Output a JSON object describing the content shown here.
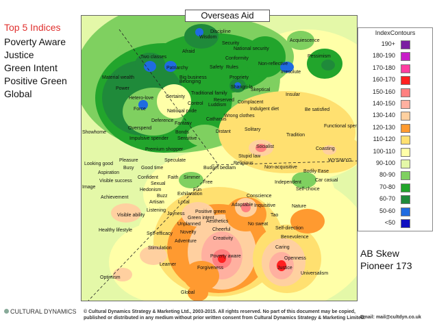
{
  "top5": {
    "title": "Top 5 Indices",
    "items": [
      "Poverty Aware",
      "Justice",
      "Green Intent",
      "Positive Green",
      "Global"
    ]
  },
  "chart_title": "Overseas Aid",
  "legend": {
    "title": "IndexContours",
    "entries": [
      {
        "label": "190+",
        "color": "#7b1fa2"
      },
      {
        "label": "180-190",
        "color": "#c81ec8"
      },
      {
        "label": "170-180",
        "color": "#ff3fa0"
      },
      {
        "label": "160-170",
        "color": "#ff2020"
      },
      {
        "label": "150-160",
        "color": "#ff8080"
      },
      {
        "label": "140-150",
        "color": "#ffb0a0"
      },
      {
        "label": "130-140",
        "color": "#ffd0a0"
      },
      {
        "label": "120-130",
        "color": "#ff9a30"
      },
      {
        "label": "110-120",
        "color": "#ffe070"
      },
      {
        "label": "100-110",
        "color": "#ffffa8"
      },
      {
        "label": "90-100",
        "color": "#e4f8a8"
      },
      {
        "label": "80-90",
        "color": "#7fd060"
      },
      {
        "label": "70-80",
        "color": "#22a52c"
      },
      {
        "label": "60-70",
        "color": "#1f8a3a"
      },
      {
        "label": "50-60",
        "color": "#1f6be0"
      },
      {
        "label": "<50",
        "color": "#1010c0"
      }
    ]
  },
  "caption": {
    "line1": "AB Skew",
    "line2": "Pioneer 173"
  },
  "footer": {
    "logo": "CULTURAL DYNAMICS",
    "copyright_line1": "© Cultural Dynamics Strategy & Marketing Ltd., 2003-2015. All rights reserved. No part of this document may be copied,",
    "copyright_line2": "published or distributed in any medium without prior written consent from Cultural Dynamics Strategy & Marketing Limited.",
    "email": "Email: mail@cultdyn.co.uk"
  },
  "chart_data": {
    "type": "heatmap",
    "title": "Overseas Aid",
    "legend_position": "right",
    "values_scale": "index contour",
    "labels": [
      "Discipline",
      "Wisdom",
      "Security",
      "Acquiescence",
      "Afraid",
      "National security",
      "Two classes",
      "Conformity",
      "Non-reflective",
      "Pessimism",
      "Rules",
      "Patriarchy",
      "Safety",
      "Irresolute",
      "Belonging",
      "Material wealth",
      "Propriety",
      "Big business",
      "Power",
      "Shangri-la",
      "Skeptical",
      "Traditional family",
      "Insular",
      "Hetero-love",
      "Certainty",
      "Reserved",
      "Complacent",
      "Luddism",
      "Force",
      "Control",
      "Be satisfied",
      "National pride",
      "Indulgent diet",
      "Catharsis",
      "Wrong clothes",
      "Deference",
      "Fantasy",
      "Functional spender",
      "Overspend",
      "Solitary",
      "Tradition",
      "Bonds",
      "Distant",
      "Impulsive spender",
      "Sensitive",
      "Showhome",
      "Premium shopper",
      "Socialist",
      "Coasting",
      "Stupid law",
      "Speculate",
      "Pleasure",
      "WYSIWYG",
      "Looking good",
      "Religious",
      "Good time",
      "Busy",
      "Budget bedlam",
      "Non-acquisitive",
      "Bodily Ease",
      "Aspiration",
      "Confident",
      "Faith",
      "Simmer",
      "Visible success",
      "Free",
      "Independent",
      "Car casual",
      "Sexual",
      "Image",
      "Hedonism",
      "Self-choice",
      "Fun",
      "Buzz",
      "Exhilaration",
      "Conscience",
      "Achievement",
      "Artisan",
      "Local",
      "Adaptable",
      "Inquisitive",
      "Nature",
      "Listening",
      "Positive green",
      "Visible ability",
      "Joyness",
      "Tao",
      "Green intent",
      "No sweat",
      "Unplanned",
      "Aesthetics",
      "Self-direction",
      "Healthy lifestyle",
      "Self-efficacy",
      "Novelty",
      "Cheerful",
      "Benevolence",
      "Adventure",
      "Creativity",
      "Stimulation",
      "Caring",
      "Poverty aware",
      "Openness",
      "Learner",
      "Justice",
      "Forgiveness",
      "Universalism",
      "Optimism",
      "Global"
    ]
  }
}
